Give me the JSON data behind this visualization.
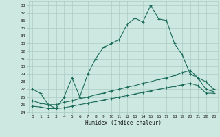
{
  "xlabel": "Humidex (Indice chaleur)",
  "bg_color": "#cce8e0",
  "grid_color": "#aaccc4",
  "line_color": "#1a6b5a",
  "xlim": [
    -0.5,
    23.5
  ],
  "ylim": [
    24,
    38.5
  ],
  "xtick_labels": [
    "0",
    "1",
    "2",
    "3",
    "4",
    "5",
    "6",
    "7",
    "8",
    "9",
    "10",
    "11",
    "12",
    "13",
    "14",
    "15",
    "16",
    "17",
    "18",
    "19",
    "20",
    "21",
    "22",
    "23"
  ],
  "xticks": [
    0,
    1,
    2,
    3,
    4,
    5,
    6,
    7,
    8,
    9,
    10,
    11,
    12,
    13,
    14,
    15,
    16,
    17,
    18,
    19,
    20,
    21,
    22,
    23
  ],
  "yticks": [
    24,
    25,
    26,
    27,
    28,
    29,
    30,
    31,
    32,
    33,
    34,
    35,
    36,
    37,
    38
  ],
  "series1_x": [
    0,
    1,
    2,
    3,
    4,
    5,
    6,
    7,
    8,
    9,
    10,
    11,
    12,
    13,
    14,
    15,
    16,
    17,
    18,
    19,
    20,
    21,
    22,
    23
  ],
  "series1_y": [
    27.0,
    26.5,
    25.0,
    24.5,
    26.0,
    28.5,
    26.0,
    29.0,
    31.0,
    32.5,
    33.0,
    33.5,
    35.5,
    36.3,
    35.8,
    38.0,
    36.2,
    36.0,
    33.0,
    31.5,
    29.0,
    28.5,
    28.0,
    27.0
  ],
  "series2_x": [
    0,
    1,
    2,
    3,
    4,
    5,
    6,
    7,
    8,
    9,
    10,
    11,
    12,
    13,
    14,
    15,
    16,
    17,
    18,
    19,
    20,
    21,
    22,
    23
  ],
  "series2_y": [
    25.5,
    25.2,
    25.0,
    25.0,
    25.3,
    25.5,
    25.8,
    26.0,
    26.3,
    26.5,
    26.8,
    27.0,
    27.3,
    27.5,
    27.8,
    28.0,
    28.3,
    28.5,
    28.8,
    29.2,
    29.5,
    28.5,
    27.0,
    26.7
  ],
  "series3_x": [
    0,
    1,
    2,
    3,
    4,
    5,
    6,
    7,
    8,
    9,
    10,
    11,
    12,
    13,
    14,
    15,
    16,
    17,
    18,
    19,
    20,
    21,
    22,
    23
  ],
  "series3_y": [
    24.8,
    24.7,
    24.5,
    24.5,
    24.6,
    24.8,
    25.0,
    25.2,
    25.4,
    25.6,
    25.8,
    26.0,
    26.2,
    26.4,
    26.6,
    26.8,
    27.0,
    27.2,
    27.4,
    27.6,
    27.8,
    27.5,
    26.5,
    26.5
  ]
}
